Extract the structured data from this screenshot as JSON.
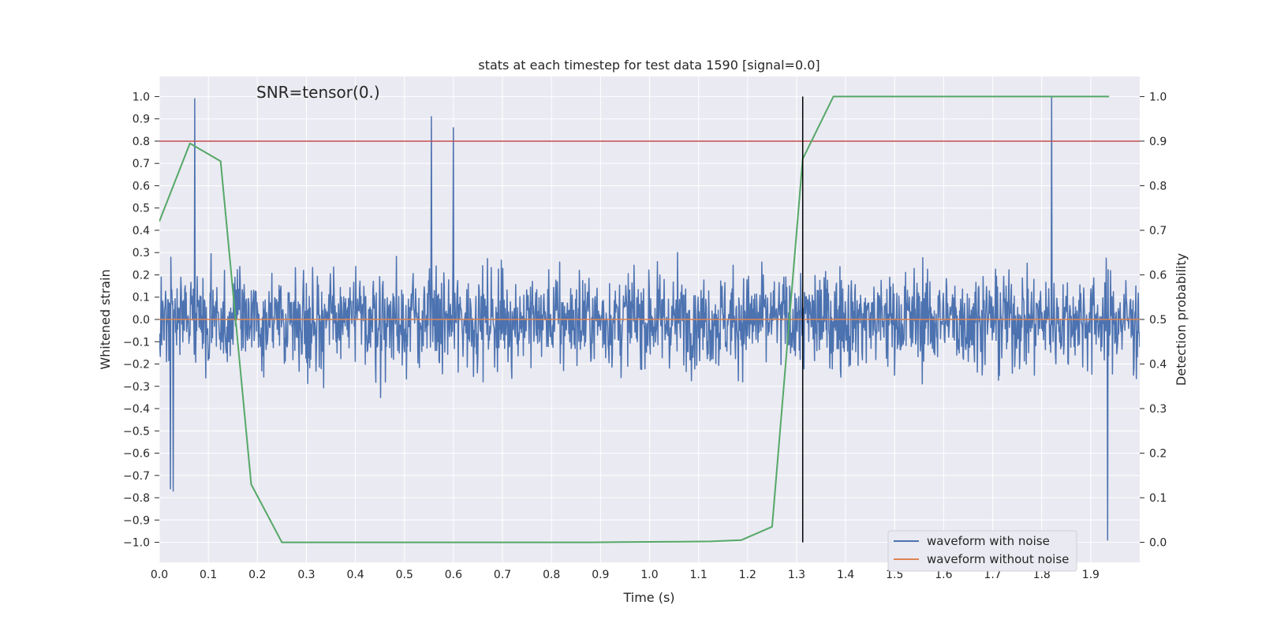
{
  "chart_data": {
    "type": "line",
    "title": "stats at each timestep for test data 1590 [signal=0.0]",
    "annotation": "SNR=tensor(0.)",
    "xlabel": "Time (s)",
    "ylabel": "Whitened strain",
    "ylabel_right": "Detection probability",
    "xlim": [
      0.0,
      2.0
    ],
    "ylim": [
      -1.09,
      1.09
    ],
    "ylim_right": [
      -0.045,
      1.045
    ],
    "x_ticks": [
      "0.0",
      "0.1",
      "0.2",
      "0.3",
      "0.4",
      "0.5",
      "0.6",
      "0.7",
      "0.8",
      "0.9",
      "1.0",
      "1.1",
      "1.2",
      "1.3",
      "1.4",
      "1.5",
      "1.6",
      "1.7",
      "1.8",
      "1.9"
    ],
    "y_ticks": [
      "1.0",
      "0.9",
      "0.8",
      "0.7",
      "0.6",
      "0.5",
      "0.4",
      "0.3",
      "0.2",
      "0.1",
      "0.0",
      "−0.1",
      "−0.2",
      "−0.3",
      "−0.4",
      "−0.5",
      "−0.6",
      "−0.7",
      "−0.8",
      "−0.9",
      "−1.0"
    ],
    "y_right_ticks": [
      "1.0",
      "0.9",
      "0.8",
      "0.7",
      "0.6",
      "0.5",
      "0.4",
      "0.3",
      "0.2",
      "0.1",
      "0.0"
    ],
    "grid": true,
    "legend_placement": "lower-right",
    "series": [
      {
        "name": "waveform with noise",
        "color": "#4c72b0",
        "kind": "noise",
        "n_points": 2048,
        "x_range": [
          0.0,
          2.0
        ],
        "y_range": [
          -1.0,
          1.0
        ],
        "peaks": [
          [
            0.072,
            0.99
          ],
          [
            0.555,
            0.91
          ],
          [
            0.6,
            0.86
          ],
          [
            1.82,
            1.0
          ],
          [
            1.935,
            -0.99
          ],
          [
            0.022,
            -0.76
          ],
          [
            0.028,
            -0.77
          ]
        ]
      },
      {
        "name": "waveform without noise",
        "color": "#dd8452",
        "kind": "constant",
        "x": [
          0.0,
          2.0
        ],
        "y": [
          0.0,
          0.0
        ]
      },
      {
        "name": "detection probability",
        "axis": "right",
        "color": "#55a868",
        "x": [
          0.0,
          0.0625,
          0.125,
          0.1875,
          0.25,
          0.3125,
          0.375,
          0.4375,
          0.5,
          0.5625,
          0.625,
          0.6875,
          0.75,
          0.8125,
          0.875,
          0.9375,
          1.0,
          1.0625,
          1.125,
          1.1875,
          1.25,
          1.3125,
          1.375,
          1.4375,
          1.5,
          1.5625,
          1.625,
          1.6875,
          1.75,
          1.8125,
          1.875,
          1.9375
        ],
        "y": [
          0.72,
          0.895,
          0.855,
          0.13,
          0.0,
          0.0,
          0.0,
          0.0,
          0.0,
          0.0,
          0.0,
          0.0,
          0.0,
          0.0,
          0.0,
          0.0005,
          0.001,
          0.0015,
          0.002,
          0.005,
          0.035,
          0.86,
          1.0,
          1.0,
          1.0,
          1.0,
          1.0,
          1.0,
          1.0,
          1.0,
          1.0,
          1.0
        ]
      }
    ],
    "threshold": {
      "y": 0.8,
      "color": "#c44e52"
    },
    "marker_line": {
      "x": 1.3125,
      "y_range": [
        -1.0,
        1.0
      ],
      "color": "#000000"
    }
  }
}
